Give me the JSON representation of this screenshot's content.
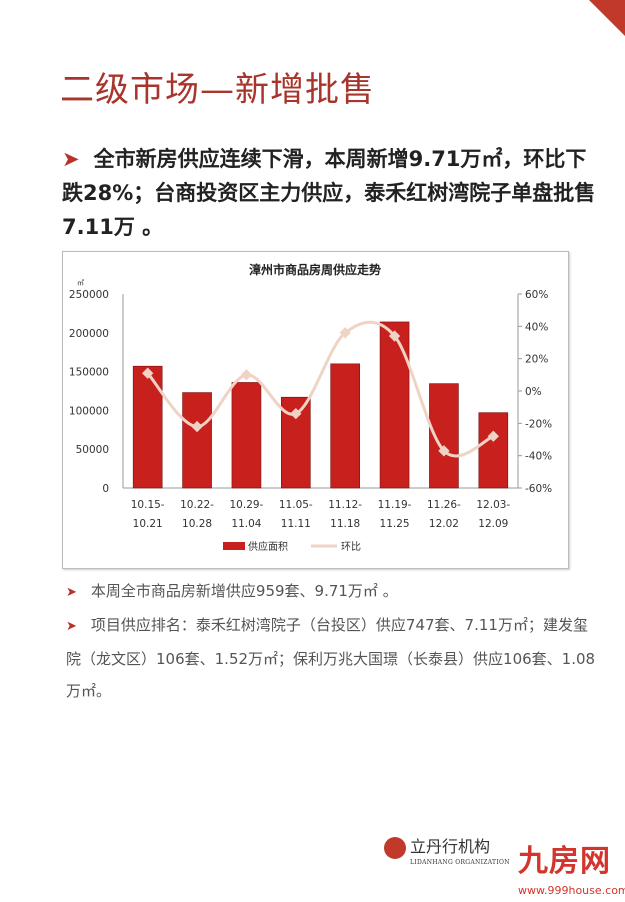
{
  "title": "二级市场—新增批售",
  "highlight": "全市新房供应连续下滑，本周新增9.71万㎡，环比下跌28%；台商投资区主力供应，泰禾红树湾院子单盘批售7.11万 。",
  "notes": [
    "本周全市商品房新增供应959套、9.71万㎡ 。",
    "项目供应排名：泰禾红树湾院子（台投区）供应747套、7.11万㎡；建发玺院（龙文区）106套、1.52万㎡；保利万兆大国璟（长泰县）供应106套、1.08万㎡。"
  ],
  "footer": {
    "org": "立丹行机构",
    "org_en": "LIDANHANG ORGANIZATION",
    "site": "九房网",
    "url": "www.999house.com"
  },
  "chart_data": {
    "type": "bar",
    "title": "漳州市商品房周供应走势",
    "y_unit": "㎡",
    "categories": [
      "10.15-10.21",
      "10.22-10.28",
      "10.29-11.04",
      "11.05-11.11",
      "11.12-11.18",
      "11.19-11.25",
      "11.26-12.02",
      "12.03-12.09"
    ],
    "ylim": [
      0,
      250000
    ],
    "y_ticks": [
      "0",
      "50000",
      "100000",
      "150000",
      "200000",
      "250000"
    ],
    "y2lim": [
      -60,
      60
    ],
    "y2_ticks": [
      "-60%",
      "-40%",
      "-20%",
      "0%",
      "20%",
      "40%",
      "60%"
    ],
    "legend_position": "bottom",
    "series": [
      {
        "name": "供应面积",
        "type": "bar",
        "axis": "left",
        "color": "#c8201d",
        "values": [
          157000,
          123000,
          136000,
          117000,
          160000,
          214000,
          134500,
          97100
        ]
      },
      {
        "name": "环比",
        "type": "line",
        "axis": "right",
        "unit": "%",
        "color": "#efd3c4",
        "values": [
          11,
          -22,
          10,
          -14,
          36,
          34,
          -37,
          -28
        ]
      }
    ]
  }
}
